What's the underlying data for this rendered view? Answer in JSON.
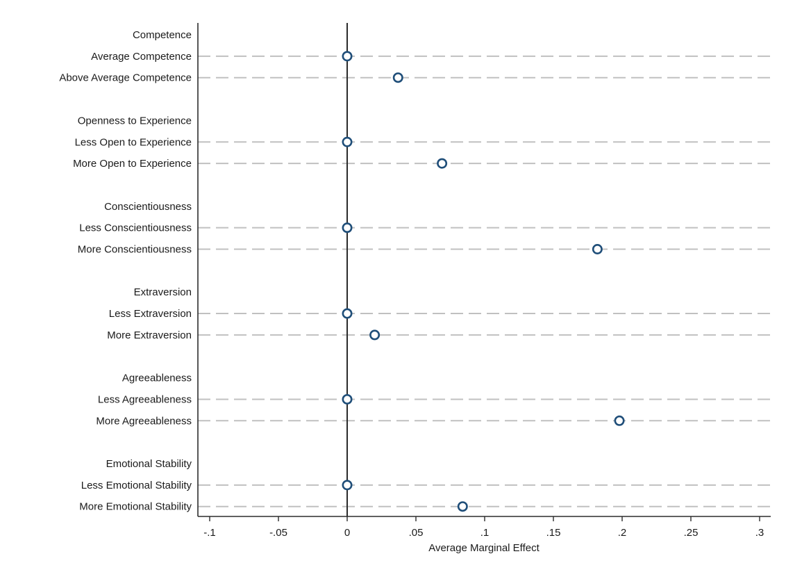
{
  "chart_data": {
    "type": "scatter",
    "title": "",
    "xlabel": "Average Marginal Effect",
    "ylabel": "",
    "xlim": [
      -0.1,
      0.3
    ],
    "xticks": [
      {
        "value": -0.1,
        "label": "-.1"
      },
      {
        "value": -0.05,
        "label": "-.05"
      },
      {
        "value": 0,
        "label": "0"
      },
      {
        "value": 0.05,
        "label": ".05"
      },
      {
        "value": 0.1,
        "label": ".1"
      },
      {
        "value": 0.15,
        "label": ".15"
      },
      {
        "value": 0.2,
        "label": ".2"
      },
      {
        "value": 0.25,
        "label": ".25"
      },
      {
        "value": 0.3,
        "label": ".3"
      }
    ],
    "reference_line_x": 0,
    "grid": true,
    "marker_color": "#1f4e79",
    "groups": [
      {
        "header": "Competence",
        "rows": [
          {
            "label": "Average Competence",
            "value": 0
          },
          {
            "label": "Above Average Competence",
            "value": 0.037
          }
        ]
      },
      {
        "header": "Openness to Experience",
        "rows": [
          {
            "label": "Less Open to Experience",
            "value": 0
          },
          {
            "label": "More Open to Experience",
            "value": 0.069
          }
        ]
      },
      {
        "header": "Conscientiousness",
        "rows": [
          {
            "label": "Less Conscientiousness",
            "value": 0
          },
          {
            "label": "More Conscientiousness",
            "value": 0.182
          }
        ]
      },
      {
        "header": "Extraversion",
        "rows": [
          {
            "label": "Less Extraversion",
            "value": 0
          },
          {
            "label": "More Extraversion",
            "value": 0.02
          }
        ]
      },
      {
        "header": "Agreeableness",
        "rows": [
          {
            "label": "Less Agreeableness",
            "value": 0
          },
          {
            "label": "More Agreeableness",
            "value": 0.198
          }
        ]
      },
      {
        "header": "Emotional Stability",
        "rows": [
          {
            "label": "Less Emotional Stability",
            "value": 0
          },
          {
            "label": "More Emotional Stability",
            "value": 0.084
          }
        ]
      }
    ]
  }
}
